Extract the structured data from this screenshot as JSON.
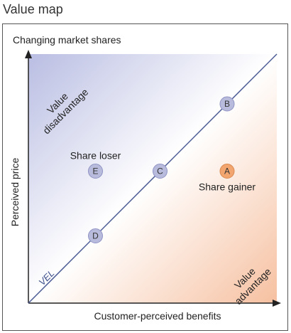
{
  "title": "Value map",
  "subtitle": "Changing market shares",
  "axes": {
    "x_label": "Customer-perceived benefits",
    "y_label": "Perceived price"
  },
  "regions": {
    "disadvantage": {
      "line1": "Value",
      "line2": "disadvantage"
    },
    "advantage": {
      "line1": "Value",
      "line2": "advantage"
    }
  },
  "line_label": "VEL",
  "colors": {
    "disadvantage_fill": "#b9bde2",
    "advantage_fill": "#f6c0a0",
    "neutral_point": "#b8bbdc",
    "highlight_point": "#f2a56e",
    "line": "#4a5a94"
  },
  "points": [
    {
      "id": "B",
      "letter": "B",
      "x": 0.8,
      "y": 0.8,
      "style": "neutral",
      "caption": ""
    },
    {
      "id": "C",
      "letter": "C",
      "x": 0.53,
      "y": 0.53,
      "style": "neutral",
      "caption": ""
    },
    {
      "id": "E",
      "letter": "E",
      "x": 0.27,
      "y": 0.53,
      "style": "neutral",
      "caption": "Share loser"
    },
    {
      "id": "A",
      "letter": "A",
      "x": 0.8,
      "y": 0.53,
      "style": "highlight",
      "caption": "Share gainer"
    },
    {
      "id": "D",
      "letter": "D",
      "x": 0.27,
      "y": 0.27,
      "style": "neutral",
      "caption": ""
    }
  ]
}
